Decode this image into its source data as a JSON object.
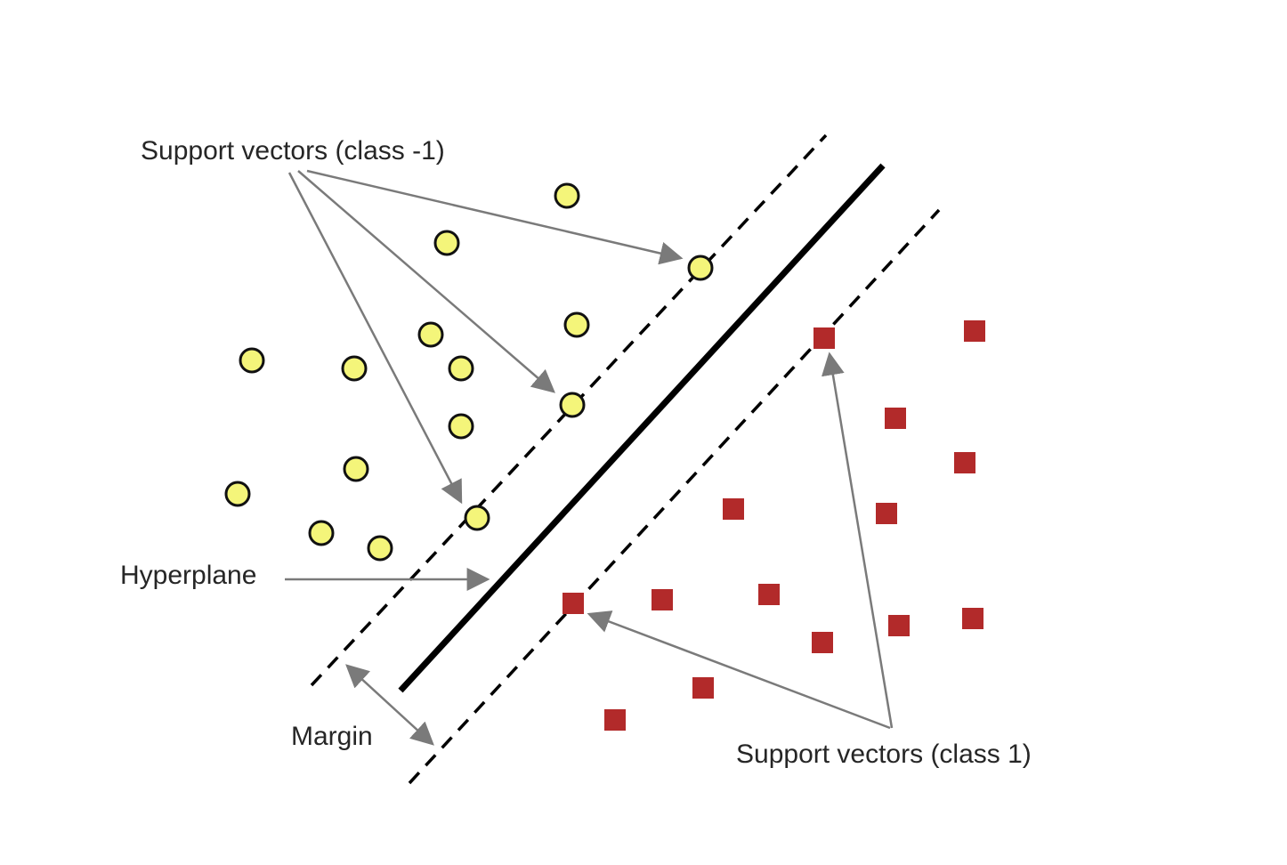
{
  "labels": {
    "support_vectors_neg": "Support vectors (class -1)",
    "support_vectors_pos": "Support vectors (class 1)",
    "hyperplane": "Hyperplane",
    "margin": "Margin"
  },
  "colors": {
    "class_neg_fill": "#f4f57a",
    "class_pos_fill": "#b22a2a",
    "arrow": "#7a7a7a",
    "lines": "#000000"
  },
  "icons": {
    "class_neg_marker": "circle",
    "class_pos_marker": "square"
  }
}
